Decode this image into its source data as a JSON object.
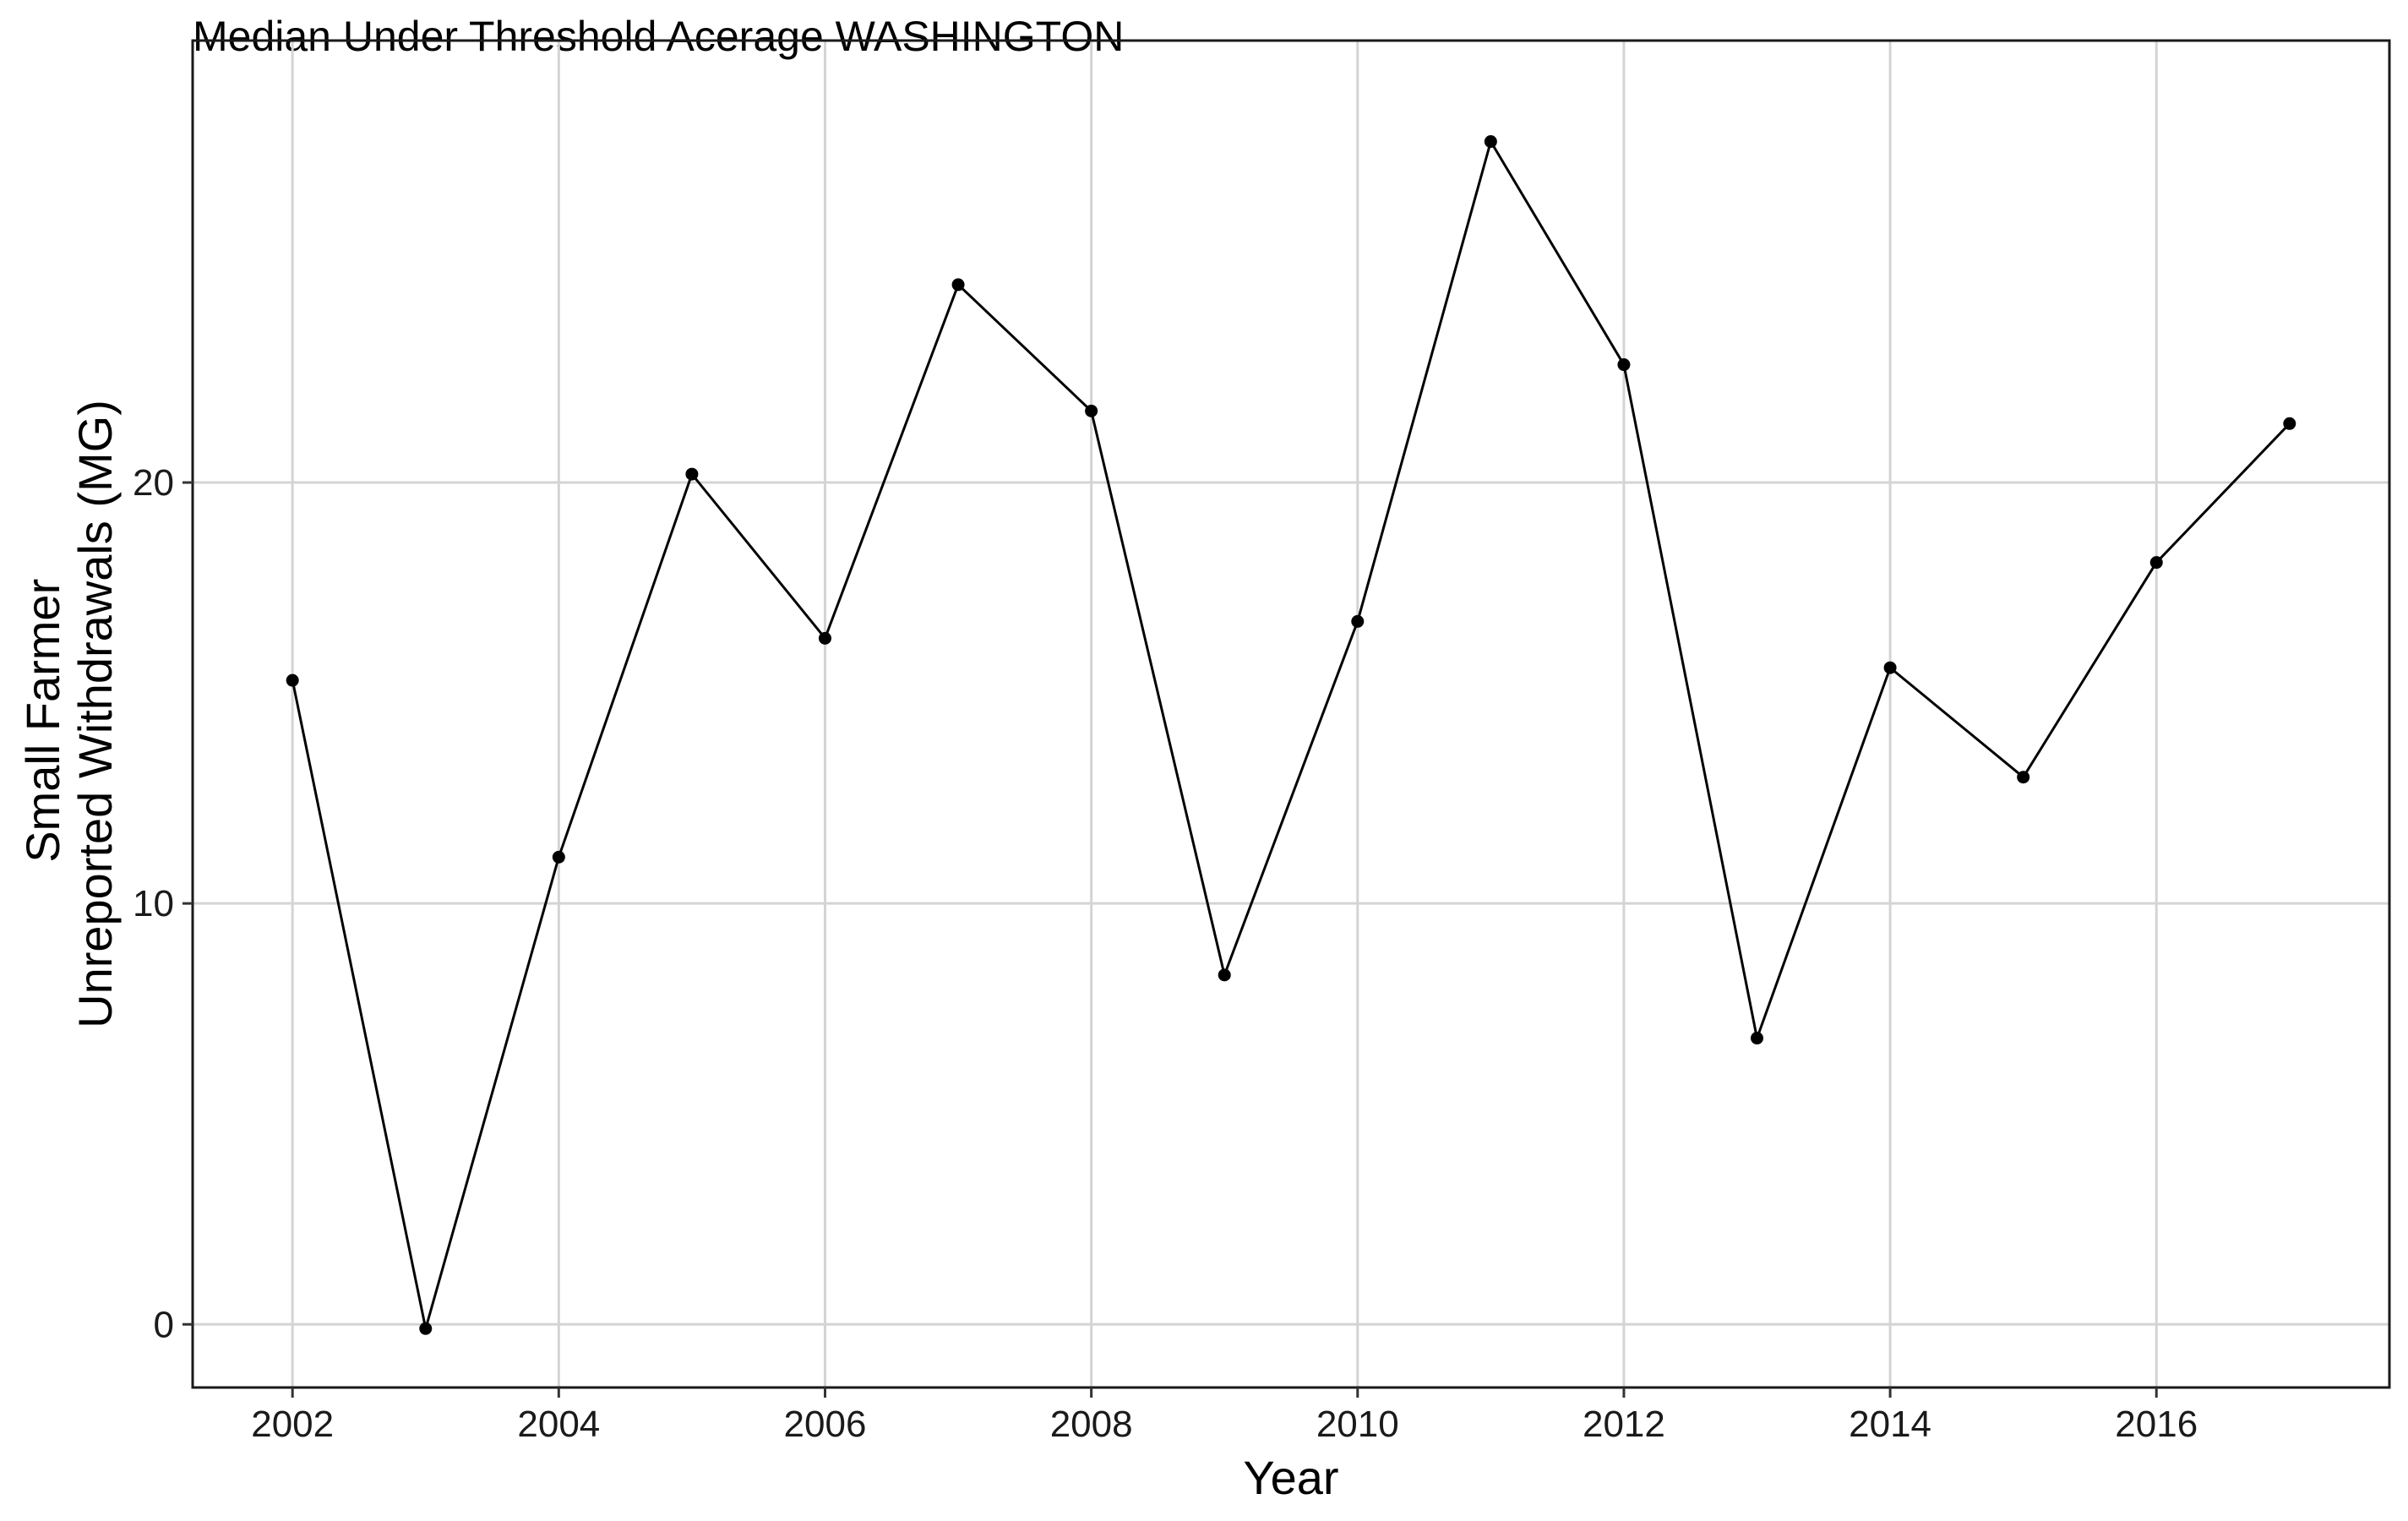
{
  "chart_data": {
    "type": "line",
    "title": "Median Under Threshold Acerage WASHINGTON",
    "xlabel": "Year",
    "ylabel_lines": [
      "Small Farmer",
      "Unreported Withdrawals (MG)"
    ],
    "xlim": [
      2001.25,
      2017.75
    ],
    "ylim": [
      -1.5,
      30.5
    ],
    "x_ticks": [
      2002,
      2004,
      2006,
      2008,
      2010,
      2012,
      2014,
      2016
    ],
    "y_ticks": [
      0,
      10,
      20
    ],
    "grid": true,
    "legend": "none",
    "series": [
      {
        "x": [
          2002,
          2003,
          2004,
          2005,
          2006,
          2007,
          2008,
          2009,
          2010,
          2011,
          2012,
          2013,
          2014,
          2015,
          2016,
          2017
        ],
        "y": [
          15.3,
          -0.1,
          11.1,
          20.2,
          16.3,
          24.7,
          21.7,
          8.3,
          16.7,
          28.1,
          22.8,
          6.8,
          15.6,
          13.0,
          18.1,
          21.4
        ]
      }
    ],
    "colors": {
      "line": "#000000",
      "point": "#000000",
      "grid": "#d4d4d4",
      "border": "#1a1a1a"
    }
  }
}
